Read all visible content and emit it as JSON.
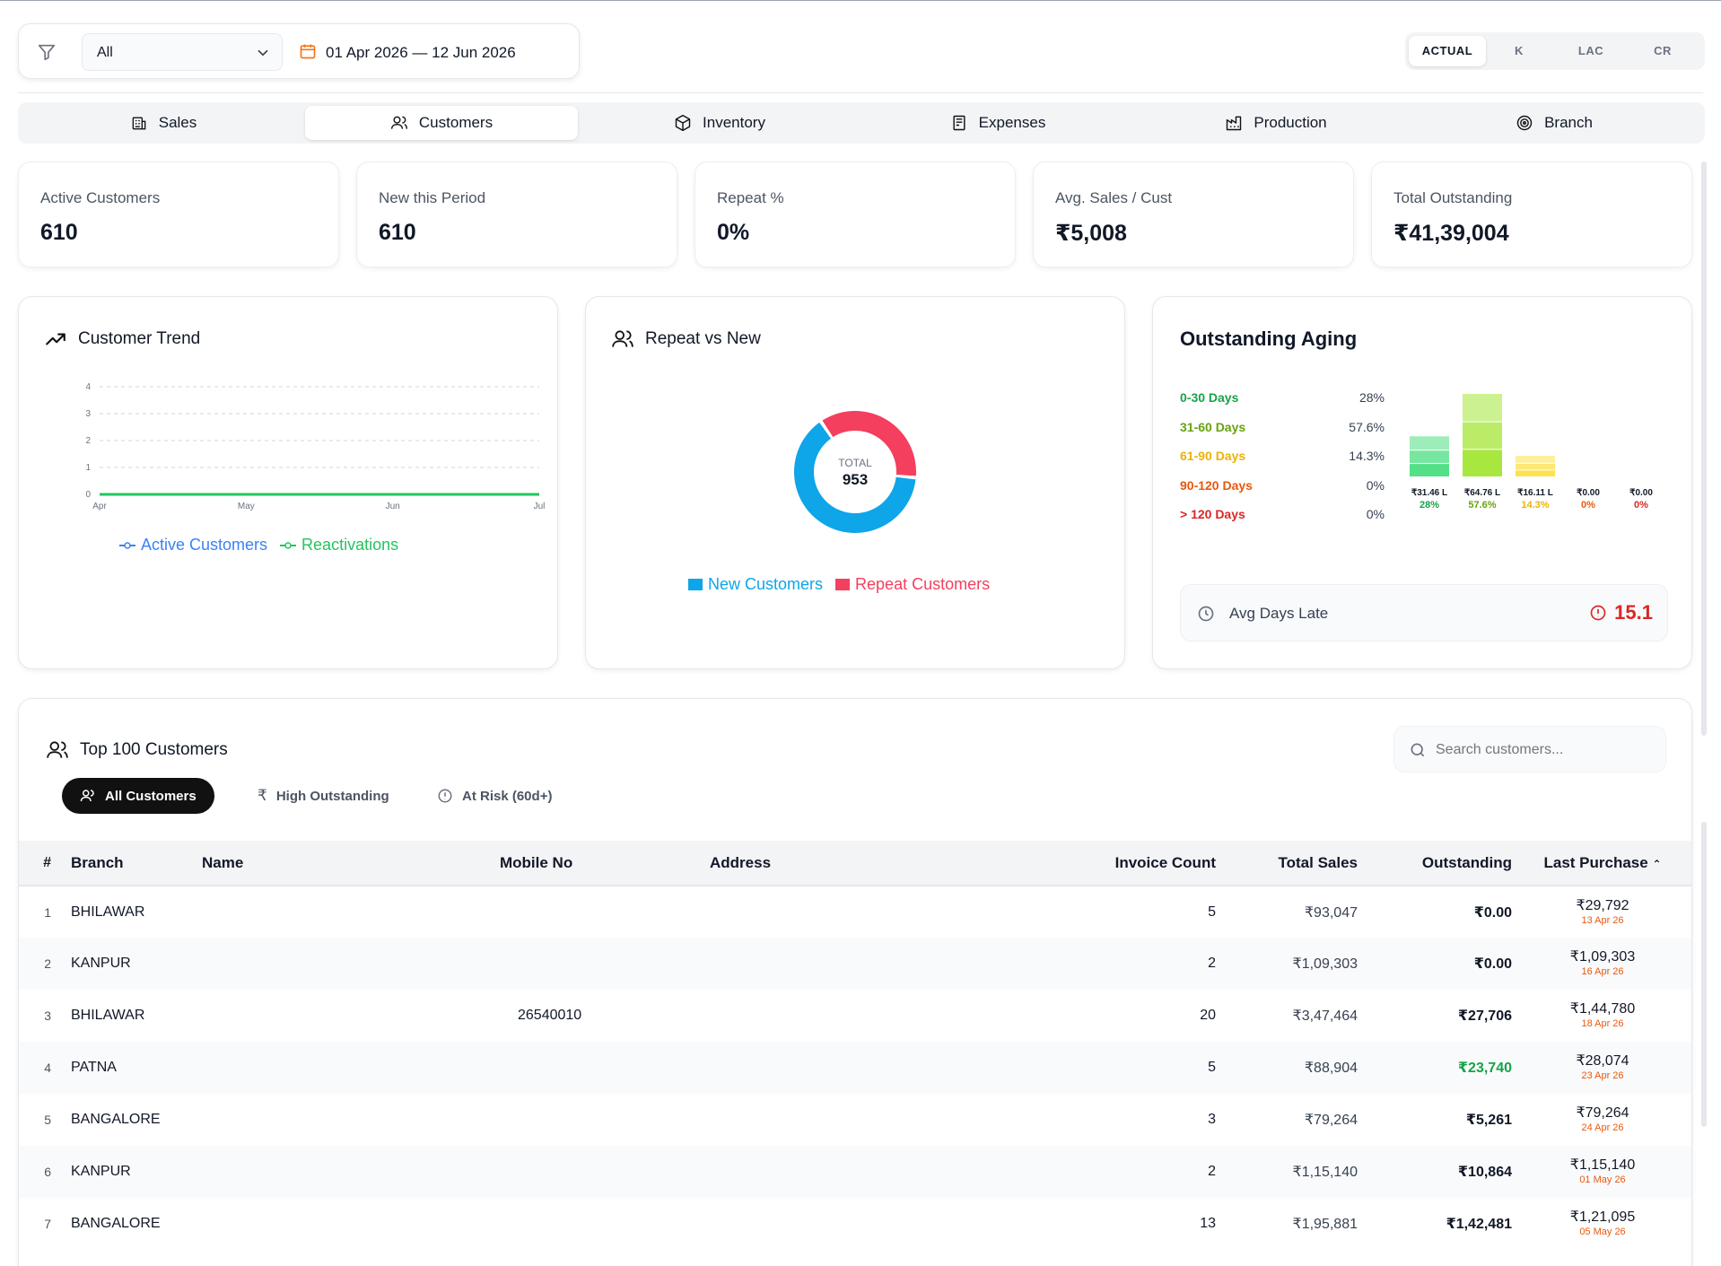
{
  "filter": {
    "branch_value": "All",
    "date_range": "01 Apr 2026 — 12 Jun 2026"
  },
  "units": [
    "ACTUAL",
    "K",
    "LAC",
    "CR"
  ],
  "tabs": [
    "Sales",
    "Customers",
    "Inventory",
    "Expenses",
    "Production",
    "Branch"
  ],
  "kpis": [
    {
      "label": "Active Customers",
      "value": "610"
    },
    {
      "label": "New this Period",
      "value": "610"
    },
    {
      "label": "Repeat %",
      "value": "0%"
    },
    {
      "label": "Avg. Sales / Cust",
      "value": "₹5,008"
    },
    {
      "label": "Total Outstanding",
      "value": "₹41,39,004"
    }
  ],
  "trend": {
    "title": "Customer Trend",
    "legend": [
      "Active Customers",
      "Reactivations"
    ],
    "colors": {
      "active": "#3b82f6",
      "reactivations": "#22c55e"
    }
  },
  "donut": {
    "title": "Repeat vs New",
    "center_label": "TOTAL",
    "center_value": "953",
    "legend": [
      "New Customers",
      "Repeat Customers"
    ],
    "colors": {
      "new": "#0ea5e9",
      "repeat": "#f43f5e"
    }
  },
  "aging": {
    "title": "Outstanding Aging",
    "buckets": [
      {
        "label": "0-30 Days",
        "pct": "28%",
        "amount": "₹31.46 L",
        "color": "#16a34a",
        "bar_color": "#4ade80"
      },
      {
        "label": "31-60 Days",
        "pct": "57.6%",
        "amount": "₹64.76 L",
        "color": "#65a30d",
        "bar_color": "#a3e635"
      },
      {
        "label": "61-90 Days",
        "pct": "14.3%",
        "amount": "₹16.11 L",
        "color": "#eab308",
        "bar_color": "#fde047"
      },
      {
        "label": "90-120 Days",
        "pct": "0%",
        "amount": "₹0.00",
        "color": "#ea580c",
        "bar_color": "#fb923c"
      },
      {
        "label": "> 120 Days",
        "pct": "0%",
        "amount": "₹0.00",
        "color": "#dc2626",
        "bar_color": "#f87171"
      }
    ],
    "avg_days_late_label": "Avg Days Late",
    "avg_days_late_value": "15.1"
  },
  "chart_data": [
    {
      "type": "line",
      "title": "Customer Trend",
      "x": [
        "Apr",
        "May",
        "Jun",
        "Jul"
      ],
      "y_ticks": [
        0,
        1,
        2,
        3,
        4
      ],
      "ylim": [
        0,
        4
      ],
      "grid": true,
      "legend_position": "bottom",
      "series": [
        {
          "name": "Active Customers",
          "values": [
            0,
            0,
            0,
            0
          ]
        },
        {
          "name": "Reactivations",
          "values": [
            0,
            0,
            0,
            0
          ]
        }
      ]
    },
    {
      "type": "pie",
      "title": "Repeat vs New",
      "categories": [
        "New Customers",
        "Repeat Customers"
      ],
      "values": [
        610,
        343
      ],
      "legend_position": "bottom"
    },
    {
      "type": "bar",
      "title": "Outstanding Aging",
      "categories": [
        "0-30 Days",
        "31-60 Days",
        "61-90 Days",
        "90-120 Days",
        "> 120 Days"
      ],
      "values": [
        28,
        57.6,
        14.3,
        0,
        0
      ]
    }
  ],
  "table": {
    "title": "Top 100 Customers",
    "search_placeholder": "Search customers...",
    "filters": [
      "All Customers",
      "High Outstanding",
      "At Risk (60d+)"
    ],
    "columns": [
      "#",
      "Branch",
      "Name",
      "Mobile No",
      "Address",
      "Invoice Count",
      "Total Sales",
      "Outstanding",
      "Last Purchase"
    ],
    "rows": [
      {
        "idx": "1",
        "branch": "BHILAWAR",
        "name": "",
        "mobile": "",
        "address": "",
        "invoices": "5",
        "sales": "₹93,047",
        "outstanding": "₹0.00",
        "last_amount": "₹29,792",
        "last_date": "13 Apr 26"
      },
      {
        "idx": "2",
        "branch": "KANPUR",
        "name": "",
        "mobile": "",
        "address": "",
        "invoices": "2",
        "sales": "₹1,09,303",
        "outstanding": "₹0.00",
        "last_amount": "₹1,09,303",
        "last_date": "16 Apr 26"
      },
      {
        "idx": "3",
        "branch": "BHILAWAR",
        "name": "",
        "mobile": "26540010",
        "address": "",
        "invoices": "20",
        "sales": "₹3,47,464",
        "outstanding": "₹27,706",
        "last_amount": "₹1,44,780",
        "last_date": "18 Apr 26"
      },
      {
        "idx": "4",
        "branch": "PATNA",
        "name": "",
        "mobile": "",
        "address": "",
        "invoices": "5",
        "sales": "₹88,904",
        "outstanding": "₹23,740",
        "last_amount": "₹28,074",
        "last_date": "23 Apr 26"
      },
      {
        "idx": "5",
        "branch": "BANGALORE",
        "name": "",
        "mobile": "",
        "address": "",
        "invoices": "3",
        "sales": "₹79,264",
        "outstanding": "₹5,261",
        "last_amount": "₹79,264",
        "last_date": "24 Apr 26"
      },
      {
        "idx": "6",
        "branch": "KANPUR",
        "name": "",
        "mobile": "",
        "address": "",
        "invoices": "2",
        "sales": "₹1,15,140",
        "outstanding": "₹10,864",
        "last_amount": "₹1,15,140",
        "last_date": "01 May 26"
      },
      {
        "idx": "7",
        "branch": "BANGALORE",
        "name": "",
        "mobile": "",
        "address": "",
        "invoices": "13",
        "sales": "₹1,95,881",
        "outstanding": "₹1,42,481",
        "last_amount": "₹1,21,095",
        "last_date": "05 May 26"
      }
    ]
  }
}
